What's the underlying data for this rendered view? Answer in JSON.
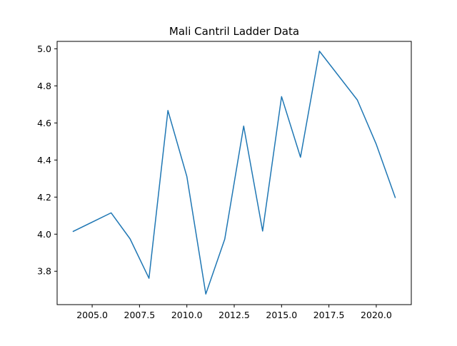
{
  "chart_data": {
    "type": "line",
    "title": "Mali Cantril Ladder Data",
    "xlabel": "",
    "ylabel": "",
    "xlim": [
      2003.15,
      2021.85
    ],
    "ylim": [
      3.62,
      5.04
    ],
    "xticks": [
      2005.0,
      2007.5,
      2010.0,
      2012.5,
      2015.0,
      2017.5,
      2020.0
    ],
    "xtick_labels": [
      "2005.0",
      "2007.5",
      "2010.0",
      "2012.5",
      "2015.0",
      "2017.5",
      "2020.0"
    ],
    "yticks": [
      3.8,
      4.0,
      4.2,
      4.4,
      4.6,
      4.8,
      5.0
    ],
    "ytick_labels": [
      "3.8",
      "4.0",
      "4.2",
      "4.4",
      "4.6",
      "4.8",
      "5.0"
    ],
    "grid": false,
    "legend": "none",
    "color": "#1f77b4",
    "series": [
      {
        "x": [
          2004,
          2006,
          2007,
          2008,
          2009,
          2010,
          2011,
          2012,
          2013,
          2014,
          2015,
          2016,
          2017,
          2019,
          2020,
          2021
        ],
        "y": [
          4.015,
          4.115,
          3.975,
          3.762,
          4.667,
          4.311,
          3.677,
          3.973,
          4.583,
          4.017,
          4.742,
          4.415,
          4.987,
          4.724,
          4.485,
          4.198
        ]
      }
    ]
  }
}
